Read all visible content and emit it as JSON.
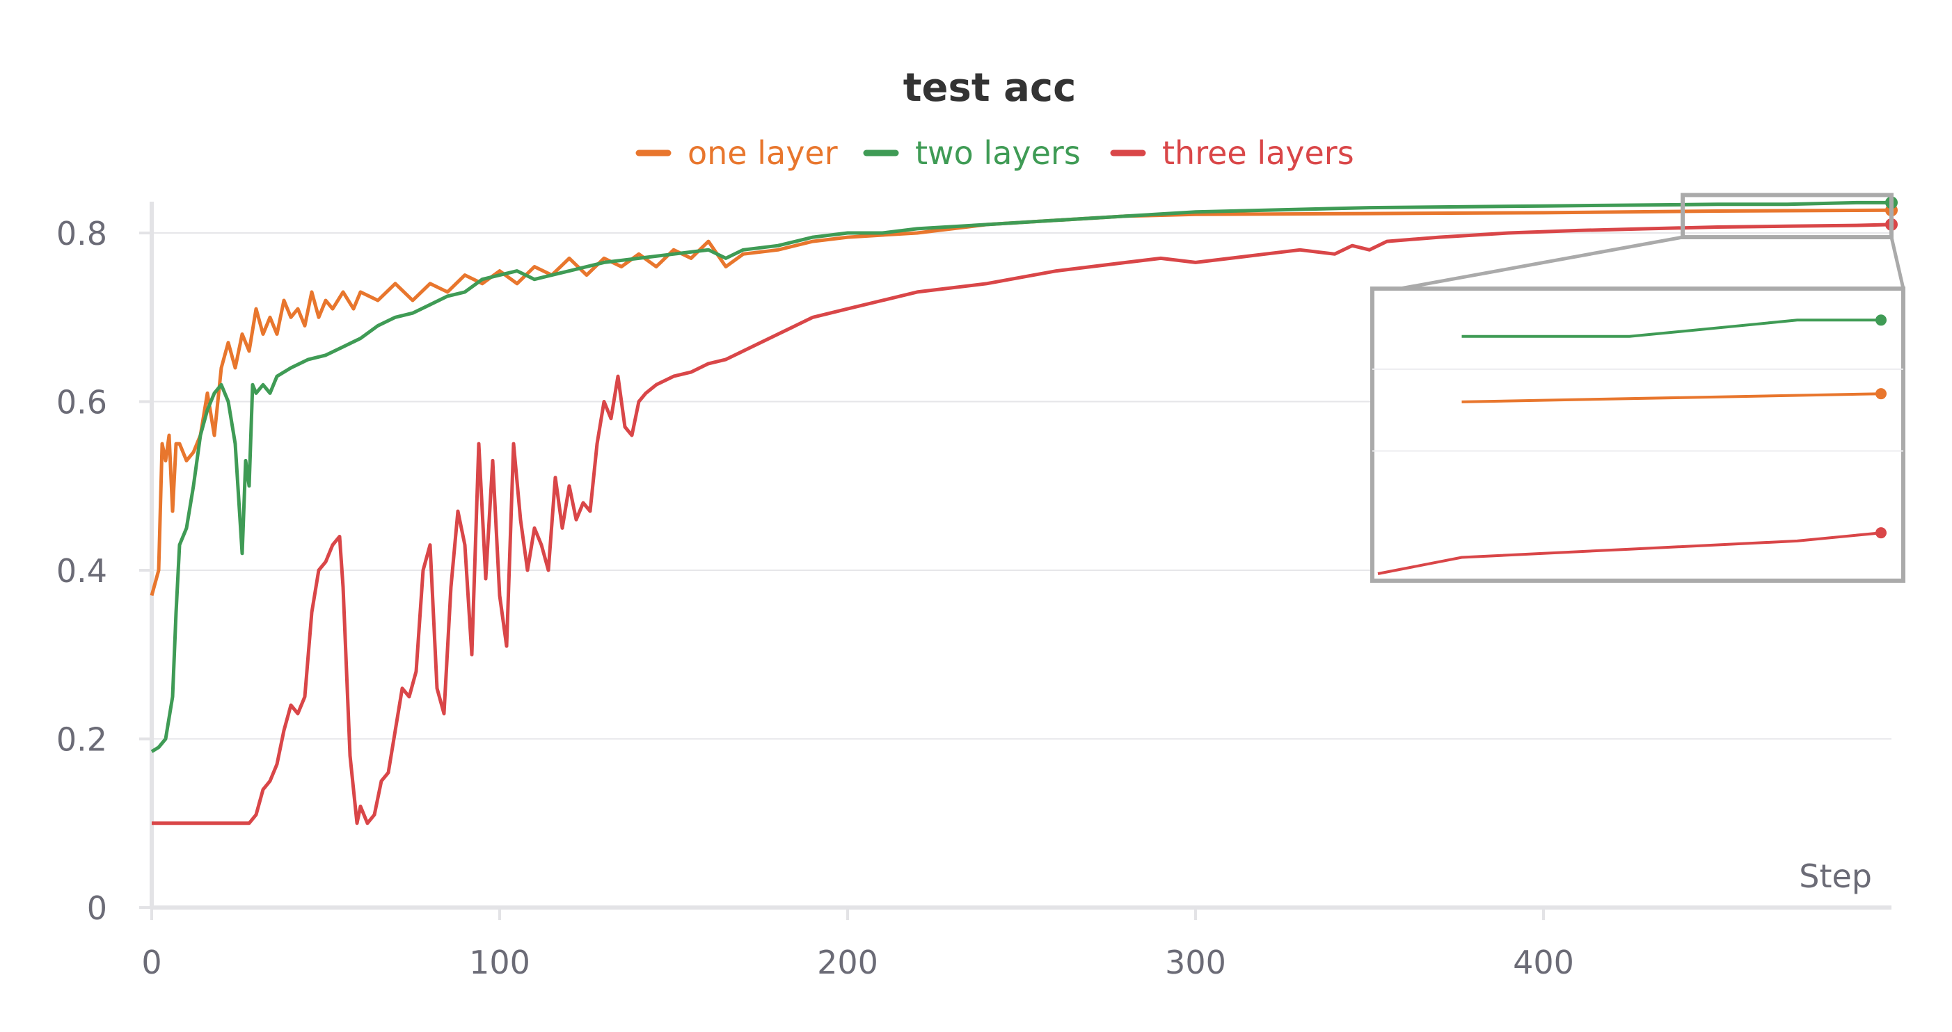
{
  "chart_data": {
    "type": "line",
    "title": "test acc",
    "xlabel": "Step",
    "ylabel": "",
    "xlim": [
      0,
      500
    ],
    "ylim": [
      0,
      0.84
    ],
    "x_ticks": [
      0,
      100,
      200,
      300,
      400
    ],
    "y_ticks": [
      0,
      0.2,
      0.4,
      0.6,
      0.8
    ],
    "x_tick_labels": [
      "0",
      "100",
      "200",
      "300",
      "400"
    ],
    "y_tick_labels": [
      "0",
      "0.2",
      "0.4",
      "0.6",
      "0.8"
    ],
    "grid": true,
    "legend_position": "top-center",
    "colors": {
      "one layer": "#e8762d",
      "two layers": "#3f9b55",
      "three layers": "#d94648"
    },
    "series": [
      {
        "name": "one layer",
        "points": [
          [
            0,
            0.37
          ],
          [
            2,
            0.4
          ],
          [
            3,
            0.55
          ],
          [
            4,
            0.53
          ],
          [
            5,
            0.56
          ],
          [
            6,
            0.47
          ],
          [
            7,
            0.55
          ],
          [
            8,
            0.55
          ],
          [
            10,
            0.53
          ],
          [
            12,
            0.54
          ],
          [
            14,
            0.56
          ],
          [
            16,
            0.61
          ],
          [
            18,
            0.56
          ],
          [
            20,
            0.64
          ],
          [
            22,
            0.67
          ],
          [
            24,
            0.64
          ],
          [
            26,
            0.68
          ],
          [
            28,
            0.66
          ],
          [
            30,
            0.71
          ],
          [
            32,
            0.68
          ],
          [
            34,
            0.7
          ],
          [
            36,
            0.68
          ],
          [
            38,
            0.72
          ],
          [
            40,
            0.7
          ],
          [
            42,
            0.71
          ],
          [
            44,
            0.69
          ],
          [
            46,
            0.73
          ],
          [
            48,
            0.7
          ],
          [
            50,
            0.72
          ],
          [
            52,
            0.71
          ],
          [
            55,
            0.73
          ],
          [
            58,
            0.71
          ],
          [
            60,
            0.73
          ],
          [
            65,
            0.72
          ],
          [
            70,
            0.74
          ],
          [
            75,
            0.72
          ],
          [
            80,
            0.74
          ],
          [
            85,
            0.73
          ],
          [
            90,
            0.75
          ],
          [
            95,
            0.74
          ],
          [
            100,
            0.755
          ],
          [
            105,
            0.74
          ],
          [
            110,
            0.76
          ],
          [
            115,
            0.75
          ],
          [
            120,
            0.77
          ],
          [
            125,
            0.75
          ],
          [
            130,
            0.77
          ],
          [
            135,
            0.76
          ],
          [
            140,
            0.775
          ],
          [
            145,
            0.76
          ],
          [
            150,
            0.78
          ],
          [
            155,
            0.77
          ],
          [
            160,
            0.79
          ],
          [
            165,
            0.76
          ],
          [
            170,
            0.775
          ],
          [
            180,
            0.78
          ],
          [
            190,
            0.79
          ],
          [
            200,
            0.795
          ],
          [
            220,
            0.8
          ],
          [
            240,
            0.81
          ],
          [
            260,
            0.815
          ],
          [
            280,
            0.82
          ],
          [
            300,
            0.822
          ],
          [
            350,
            0.823
          ],
          [
            400,
            0.824
          ],
          [
            450,
            0.826
          ],
          [
            500,
            0.827
          ]
        ]
      },
      {
        "name": "two layers",
        "points": [
          [
            0,
            0.185
          ],
          [
            2,
            0.19
          ],
          [
            4,
            0.2
          ],
          [
            6,
            0.25
          ],
          [
            7,
            0.35
          ],
          [
            8,
            0.43
          ],
          [
            10,
            0.45
          ],
          [
            12,
            0.5
          ],
          [
            14,
            0.56
          ],
          [
            16,
            0.59
          ],
          [
            18,
            0.61
          ],
          [
            20,
            0.62
          ],
          [
            22,
            0.6
          ],
          [
            24,
            0.55
          ],
          [
            26,
            0.42
          ],
          [
            27,
            0.53
          ],
          [
            28,
            0.5
          ],
          [
            29,
            0.62
          ],
          [
            30,
            0.61
          ],
          [
            32,
            0.62
          ],
          [
            34,
            0.61
          ],
          [
            36,
            0.63
          ],
          [
            40,
            0.64
          ],
          [
            45,
            0.65
          ],
          [
            50,
            0.655
          ],
          [
            55,
            0.665
          ],
          [
            60,
            0.675
          ],
          [
            65,
            0.69
          ],
          [
            70,
            0.7
          ],
          [
            75,
            0.705
          ],
          [
            80,
            0.715
          ],
          [
            85,
            0.725
          ],
          [
            90,
            0.73
          ],
          [
            95,
            0.745
          ],
          [
            100,
            0.75
          ],
          [
            105,
            0.755
          ],
          [
            110,
            0.745
          ],
          [
            115,
            0.75
          ],
          [
            120,
            0.755
          ],
          [
            130,
            0.765
          ],
          [
            140,
            0.77
          ],
          [
            150,
            0.775
          ],
          [
            160,
            0.78
          ],
          [
            165,
            0.77
          ],
          [
            170,
            0.78
          ],
          [
            180,
            0.785
          ],
          [
            190,
            0.795
          ],
          [
            200,
            0.8
          ],
          [
            210,
            0.8
          ],
          [
            220,
            0.805
          ],
          [
            240,
            0.81
          ],
          [
            260,
            0.815
          ],
          [
            280,
            0.82
          ],
          [
            300,
            0.825
          ],
          [
            350,
            0.83
          ],
          [
            400,
            0.832
          ],
          [
            450,
            0.834
          ],
          [
            470,
            0.834
          ],
          [
            490,
            0.836
          ],
          [
            500,
            0.836
          ]
        ]
      },
      {
        "name": "three layers",
        "points": [
          [
            0,
            0.1
          ],
          [
            10,
            0.1
          ],
          [
            20,
            0.1
          ],
          [
            28,
            0.1
          ],
          [
            30,
            0.11
          ],
          [
            32,
            0.14
          ],
          [
            34,
            0.15
          ],
          [
            36,
            0.17
          ],
          [
            38,
            0.21
          ],
          [
            40,
            0.24
          ],
          [
            42,
            0.23
          ],
          [
            44,
            0.25
          ],
          [
            46,
            0.35
          ],
          [
            48,
            0.4
          ],
          [
            50,
            0.41
          ],
          [
            52,
            0.43
          ],
          [
            54,
            0.44
          ],
          [
            55,
            0.38
          ],
          [
            57,
            0.18
          ],
          [
            59,
            0.1
          ],
          [
            60,
            0.12
          ],
          [
            62,
            0.1
          ],
          [
            64,
            0.11
          ],
          [
            66,
            0.15
          ],
          [
            68,
            0.16
          ],
          [
            70,
            0.21
          ],
          [
            72,
            0.26
          ],
          [
            74,
            0.25
          ],
          [
            76,
            0.28
          ],
          [
            78,
            0.4
          ],
          [
            80,
            0.43
          ],
          [
            82,
            0.26
          ],
          [
            84,
            0.23
          ],
          [
            86,
            0.38
          ],
          [
            88,
            0.47
          ],
          [
            90,
            0.43
          ],
          [
            92,
            0.3
          ],
          [
            94,
            0.55
          ],
          [
            96,
            0.39
          ],
          [
            98,
            0.53
          ],
          [
            100,
            0.37
          ],
          [
            102,
            0.31
          ],
          [
            104,
            0.55
          ],
          [
            106,
            0.46
          ],
          [
            108,
            0.4
          ],
          [
            110,
            0.45
          ],
          [
            112,
            0.43
          ],
          [
            114,
            0.4
          ],
          [
            116,
            0.51
          ],
          [
            118,
            0.45
          ],
          [
            120,
            0.5
          ],
          [
            122,
            0.46
          ],
          [
            124,
            0.48
          ],
          [
            126,
            0.47
          ],
          [
            128,
            0.55
          ],
          [
            130,
            0.6
          ],
          [
            132,
            0.58
          ],
          [
            134,
            0.63
          ],
          [
            136,
            0.57
          ],
          [
            138,
            0.56
          ],
          [
            140,
            0.6
          ],
          [
            142,
            0.61
          ],
          [
            145,
            0.62
          ],
          [
            150,
            0.63
          ],
          [
            155,
            0.635
          ],
          [
            160,
            0.645
          ],
          [
            165,
            0.65
          ],
          [
            170,
            0.66
          ],
          [
            175,
            0.67
          ],
          [
            180,
            0.68
          ],
          [
            190,
            0.7
          ],
          [
            200,
            0.71
          ],
          [
            210,
            0.72
          ],
          [
            220,
            0.73
          ],
          [
            240,
            0.74
          ],
          [
            260,
            0.755
          ],
          [
            280,
            0.765
          ],
          [
            290,
            0.77
          ],
          [
            300,
            0.765
          ],
          [
            310,
            0.77
          ],
          [
            320,
            0.775
          ],
          [
            330,
            0.78
          ],
          [
            340,
            0.775
          ],
          [
            345,
            0.785
          ],
          [
            350,
            0.78
          ],
          [
            355,
            0.79
          ],
          [
            370,
            0.795
          ],
          [
            390,
            0.8
          ],
          [
            410,
            0.803
          ],
          [
            430,
            0.805
          ],
          [
            450,
            0.807
          ],
          [
            470,
            0.808
          ],
          [
            490,
            0.809
          ],
          [
            500,
            0.81
          ]
        ]
      }
    ]
  }
}
